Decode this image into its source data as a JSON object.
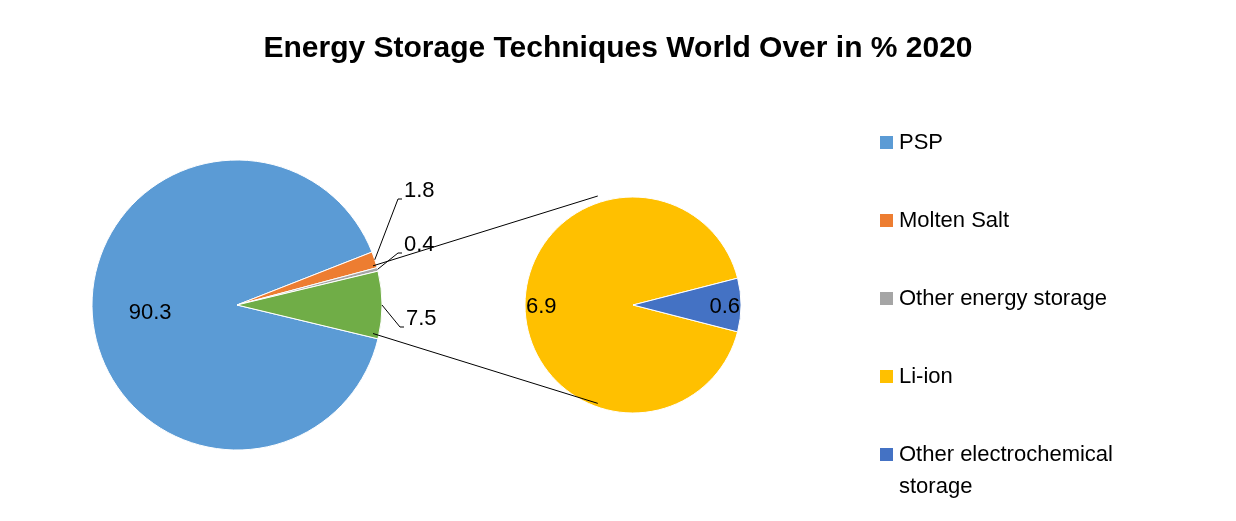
{
  "chart_data": [
    {
      "type": "pie",
      "title": "Energy Storage Techniques World Over in % 2020",
      "categories": [
        "PSP",
        "Molten Salt",
        "Other energy storage",
        null
      ],
      "values": [
        90.3,
        1.8,
        0.4,
        7.5
      ],
      "colors": [
        "#5b9bd5",
        "#ed7d31",
        "#a5a5a5",
        "#70ad47"
      ],
      "data_labels": true,
      "legend": "right"
    },
    {
      "type": "pie",
      "categories": [
        "Li-ion",
        "Other electrochemical storage"
      ],
      "values": [
        6.9,
        0.6
      ],
      "colors": [
        "#ffc000",
        "#4472c4"
      ],
      "data_labels": true,
      "legend": "right"
    }
  ]
}
